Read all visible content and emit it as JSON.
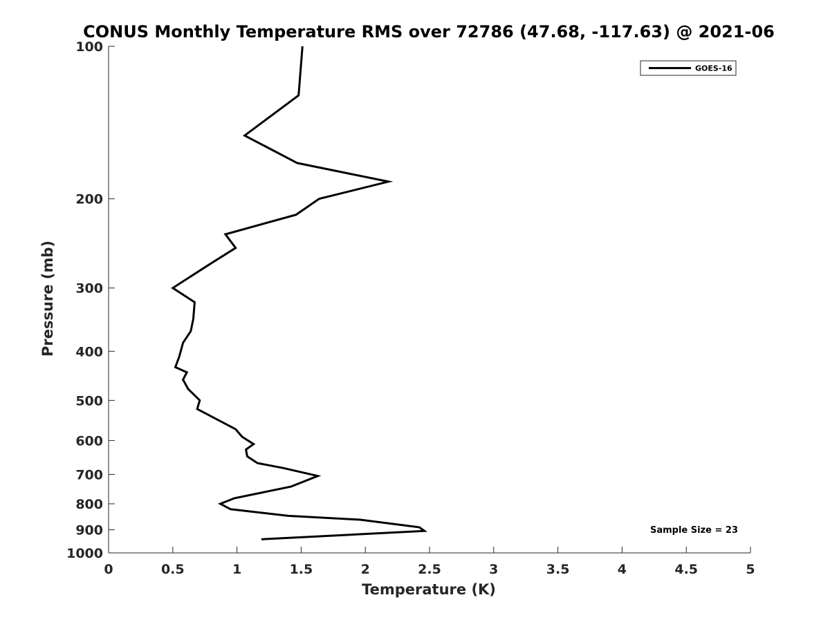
{
  "chart_data": {
    "type": "line",
    "title": "CONUS Monthly Temperature RMS over 72786 (47.68, -117.63) @ 2021-06",
    "xlabel": "Temperature (K)",
    "ylabel": "Pressure (mb)",
    "xlim": [
      0,
      5
    ],
    "ylim": [
      100,
      1000
    ],
    "yscale": "log",
    "y_reversed": true,
    "grid": false,
    "legend_position": "top-right",
    "xticks": [
      0,
      0.5,
      1,
      1.5,
      2,
      2.5,
      3,
      3.5,
      4,
      4.5,
      5
    ],
    "xtick_labels": [
      "0",
      "0.5",
      "1",
      "1.5",
      "2",
      "2.5",
      "3",
      "3.5",
      "4",
      "4.5",
      "5"
    ],
    "yticks": [
      100,
      200,
      300,
      400,
      500,
      600,
      700,
      800,
      900,
      1000
    ],
    "ytick_labels": [
      "100",
      "200",
      "300",
      "400",
      "500",
      "600",
      "700",
      "800",
      "900",
      "1000"
    ],
    "series": [
      {
        "name": "GOES-16",
        "color": "#000000",
        "points": [
          [
            1.51,
            100
          ],
          [
            1.48,
            125
          ],
          [
            1.06,
            150
          ],
          [
            1.47,
            170
          ],
          [
            2.18,
            185
          ],
          [
            1.64,
            200
          ],
          [
            1.46,
            215
          ],
          [
            0.91,
            235
          ],
          [
            0.99,
            250
          ],
          [
            0.78,
            270
          ],
          [
            0.5,
            300
          ],
          [
            0.67,
            320
          ],
          [
            0.66,
            345
          ],
          [
            0.64,
            365
          ],
          [
            0.58,
            385
          ],
          [
            0.55,
            410
          ],
          [
            0.52,
            430
          ],
          [
            0.61,
            440
          ],
          [
            0.58,
            455
          ],
          [
            0.62,
            475
          ],
          [
            0.71,
            500
          ],
          [
            0.69,
            520
          ],
          [
            0.99,
            570
          ],
          [
            1.04,
            590
          ],
          [
            1.13,
            610
          ],
          [
            1.07,
            625
          ],
          [
            1.08,
            645
          ],
          [
            1.16,
            665
          ],
          [
            1.36,
            680
          ],
          [
            1.63,
            705
          ],
          [
            1.42,
            740
          ],
          [
            0.98,
            780
          ],
          [
            0.87,
            800
          ],
          [
            0.95,
            820
          ],
          [
            1.4,
            845
          ],
          [
            1.96,
            860
          ],
          [
            2.42,
            890
          ],
          [
            2.46,
            905
          ],
          [
            1.19,
            940
          ]
        ]
      }
    ],
    "annotation": "Sample Size = 23"
  }
}
